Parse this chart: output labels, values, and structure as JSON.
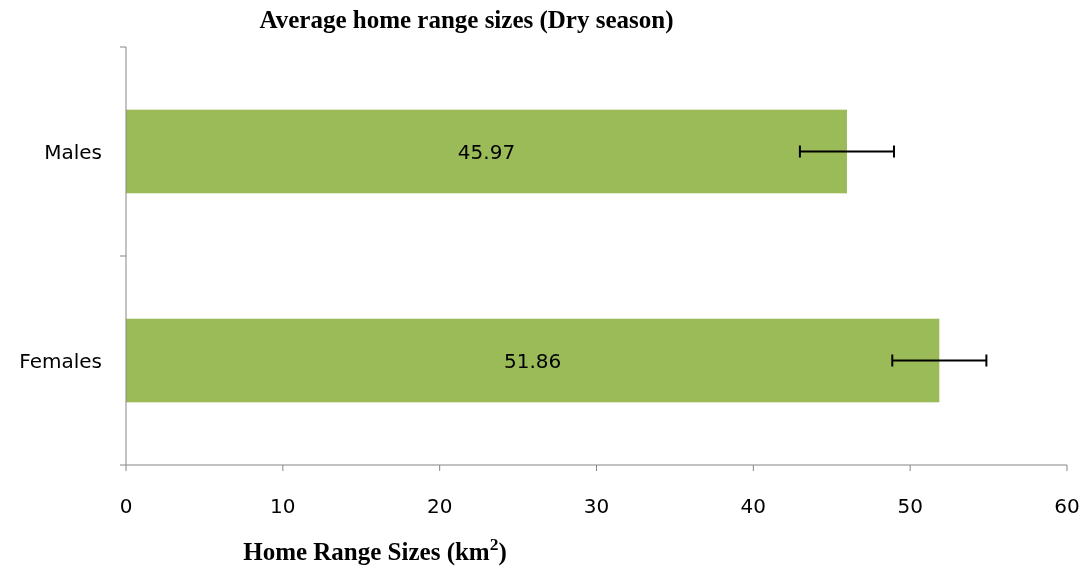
{
  "chart_data": {
    "type": "bar",
    "orientation": "horizontal",
    "title": "Average home range sizes (Dry season)",
    "xlabel": "Home Range Sizes (km$^{2}$)",
    "categories": [
      "Males",
      "Females"
    ],
    "values": [
      45.97,
      51.86
    ],
    "errors": [
      3,
      3
    ],
    "color": "#9bbb59",
    "xlim": [
      0,
      60
    ],
    "xticks": [
      0,
      10,
      20,
      30,
      40,
      50,
      60
    ],
    "data_labels": true,
    "grid": false
  }
}
